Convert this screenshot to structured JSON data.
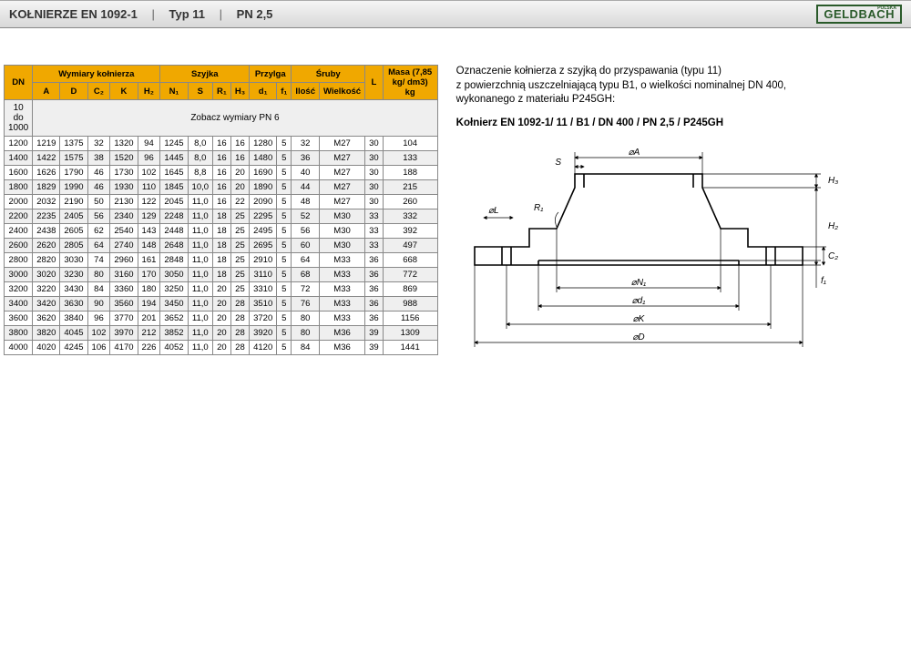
{
  "header": {
    "title_a": "KOŁNIERZE EN 1092-1",
    "title_b": "Typ 11",
    "title_c": "PN 2,5",
    "logo_main": "GELDBACH",
    "logo_small": "POLSKA"
  },
  "table": {
    "group_headers": [
      "",
      "Wymiary kołnierza",
      "Szyjka",
      "Przylga",
      "Śruby",
      "",
      ""
    ],
    "group_spans": [
      1,
      5,
      4,
      2,
      2,
      1,
      1
    ],
    "col_headers": [
      "DN",
      "A",
      "D",
      "C₂",
      "K",
      "H₂",
      "N₁",
      "S",
      "R₁",
      "H₃",
      "d₁",
      "f₁",
      "Ilość",
      "Wielkość",
      "L",
      "Masa (7,85 kg/ dm3) kg"
    ],
    "note_dn": "10 do 1000",
    "note_text": "Zobacz wymiary PN 6",
    "rows": [
      [
        "1200",
        "1219",
        "1375",
        "32",
        "1320",
        "94",
        "1245",
        "8,0",
        "16",
        "16",
        "1280",
        "5",
        "32",
        "M27",
        "30",
        "104"
      ],
      [
        "1400",
        "1422",
        "1575",
        "38",
        "1520",
        "96",
        "1445",
        "8,0",
        "16",
        "16",
        "1480",
        "5",
        "36",
        "M27",
        "30",
        "133"
      ],
      [
        "1600",
        "1626",
        "1790",
        "46",
        "1730",
        "102",
        "1645",
        "8,8",
        "16",
        "20",
        "1690",
        "5",
        "40",
        "M27",
        "30",
        "188"
      ],
      [
        "1800",
        "1829",
        "1990",
        "46",
        "1930",
        "110",
        "1845",
        "10,0",
        "16",
        "20",
        "1890",
        "5",
        "44",
        "M27",
        "30",
        "215"
      ],
      [
        "2000",
        "2032",
        "2190",
        "50",
        "2130",
        "122",
        "2045",
        "11,0",
        "16",
        "22",
        "2090",
        "5",
        "48",
        "M27",
        "30",
        "260"
      ],
      [
        "2200",
        "2235",
        "2405",
        "56",
        "2340",
        "129",
        "2248",
        "11,0",
        "18",
        "25",
        "2295",
        "5",
        "52",
        "M30",
        "33",
        "332"
      ],
      [
        "2400",
        "2438",
        "2605",
        "62",
        "2540",
        "143",
        "2448",
        "11,0",
        "18",
        "25",
        "2495",
        "5",
        "56",
        "M30",
        "33",
        "392"
      ],
      [
        "2600",
        "2620",
        "2805",
        "64",
        "2740",
        "148",
        "2648",
        "11,0",
        "18",
        "25",
        "2695",
        "5",
        "60",
        "M30",
        "33",
        "497"
      ],
      [
        "2800",
        "2820",
        "3030",
        "74",
        "2960",
        "161",
        "2848",
        "11,0",
        "18",
        "25",
        "2910",
        "5",
        "64",
        "M33",
        "36",
        "668"
      ],
      [
        "3000",
        "3020",
        "3230",
        "80",
        "3160",
        "170",
        "3050",
        "11,0",
        "18",
        "25",
        "3110",
        "5",
        "68",
        "M33",
        "36",
        "772"
      ],
      [
        "3200",
        "3220",
        "3430",
        "84",
        "3360",
        "180",
        "3250",
        "11,0",
        "20",
        "25",
        "3310",
        "5",
        "72",
        "M33",
        "36",
        "869"
      ],
      [
        "3400",
        "3420",
        "3630",
        "90",
        "3560",
        "194",
        "3450",
        "11,0",
        "20",
        "28",
        "3510",
        "5",
        "76",
        "M33",
        "36",
        "988"
      ],
      [
        "3600",
        "3620",
        "3840",
        "96",
        "3770",
        "201",
        "3652",
        "11,0",
        "20",
        "28",
        "3720",
        "5",
        "80",
        "M33",
        "36",
        "1156"
      ],
      [
        "3800",
        "3820",
        "4045",
        "102",
        "3970",
        "212",
        "3852",
        "11,0",
        "20",
        "28",
        "3920",
        "5",
        "80",
        "M36",
        "39",
        "1309"
      ],
      [
        "4000",
        "4020",
        "4245",
        "106",
        "4170",
        "226",
        "4052",
        "11,0",
        "20",
        "28",
        "4120",
        "5",
        "84",
        "M36",
        "39",
        "1441"
      ]
    ],
    "header_bg": "#f0a800",
    "border_color": "#888888"
  },
  "description": {
    "line1": "Oznaczenie kołnierza z szyjką do przyspawania (typu 11)",
    "line2": "z powierzchnią uszczelniającą typu B1, o wielkości nominalnej DN 400,",
    "line3": "wykonanego z materiału P245GH:",
    "spec": "Kołnierz EN 1092-1/ 11 / B1 / DN 400 / PN 2,5 / P245GH"
  },
  "diagram": {
    "type": "technical-drawing",
    "labels": [
      "⌀A",
      "S",
      "⌀L",
      "R₁",
      "⌀N₁",
      "⌀d₁",
      "⌀K",
      "⌀D",
      "H₃",
      "H₂",
      "C₂",
      "f₁"
    ],
    "stroke": "#000000",
    "bg": "#ffffff",
    "line_w_thick": 1.6,
    "line_w_thin": 0.7,
    "font_size_label": 10
  }
}
